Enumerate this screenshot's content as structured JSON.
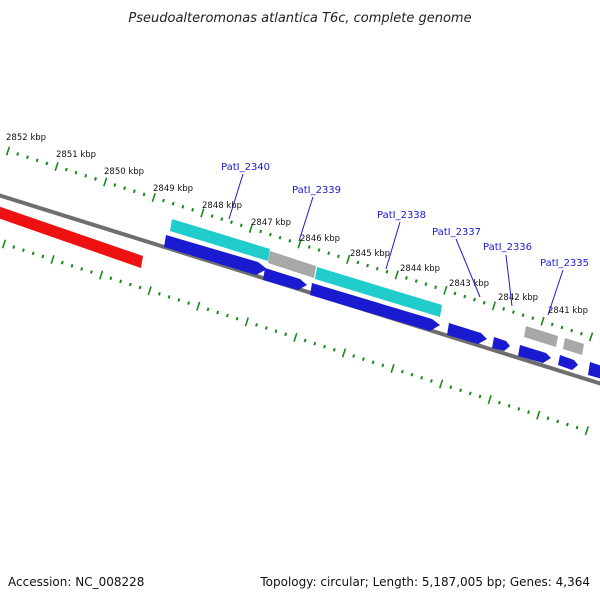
{
  "title": "Pseudoalteromonas atlantica T6c, complete genome",
  "footer": {
    "accession": "Accession: NC_008228",
    "topology": "Topology: circular; Length: 5,187,005 bp; Genes: 4,364"
  },
  "kbp_labels": [
    "2852 kbp",
    "2851 kbp",
    "2850 kbp",
    "2849 kbp",
    "2848 kbp",
    "2847 kbp",
    "2846 kbp",
    "2845 kbp",
    "2844 kbp",
    "2843 kbp",
    "2842 kbp",
    "2841 kbp"
  ],
  "gene_labels": [
    "PatI_2340",
    "PatI_2339",
    "PatI_2338",
    "PatI_2337",
    "PatI_2336",
    "PatI_2335"
  ],
  "colors": {
    "backbone": "#6e6e6e",
    "highlight": "#ee1111",
    "cds_forward": "#1a1ad0",
    "rna_cyan": "#20cccc",
    "gray_feature": "#a8a8a8",
    "tick": "#1a8a1a",
    "gene_label": "#1a1ad0"
  }
}
